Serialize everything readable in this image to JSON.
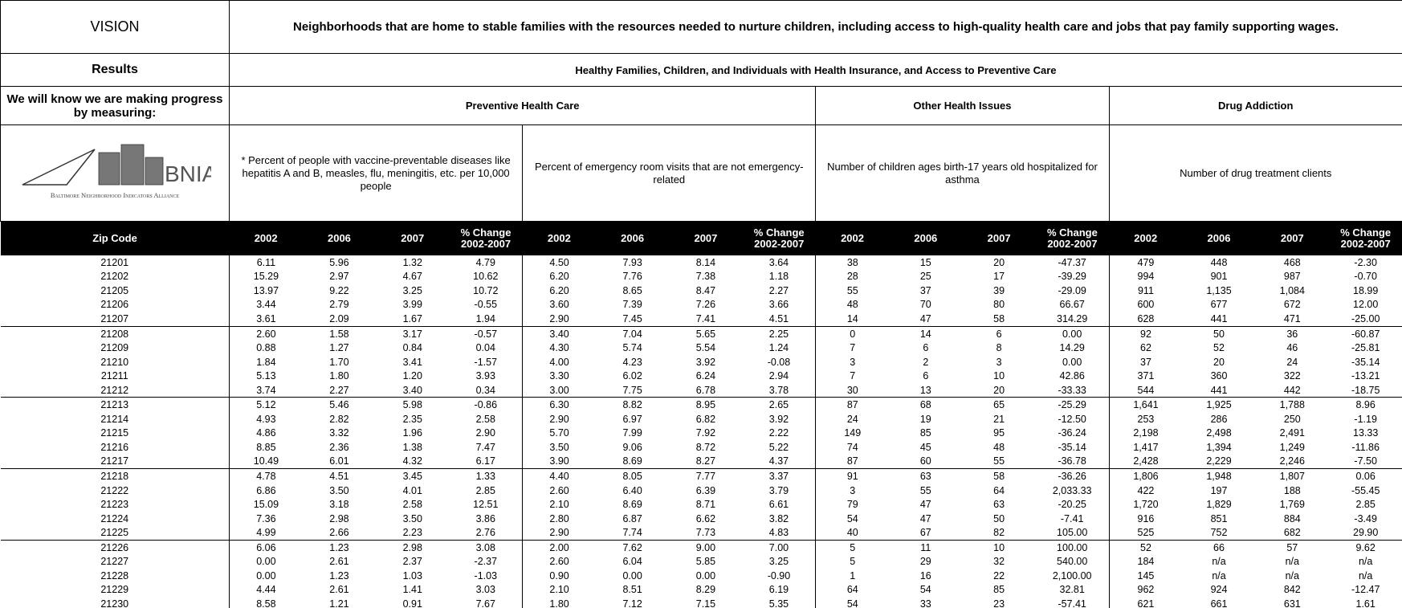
{
  "header": {
    "vision_label": "VISION",
    "vision": "Neighborhoods that are home to stable families with the resources needed to nurture children, including access to high-quality health care and jobs that pay family supporting wages.",
    "results_label": "Results",
    "results": "Healthy Families, Children, and Individuals with Health Insurance, and Access to Preventive Care",
    "measuring_label": "We will know we are making progress by measuring:",
    "groups": [
      "Preventive Health Care",
      "Other Health Issues",
      "Drug  Addiction"
    ],
    "logo": {
      "name": "BNIA",
      "full_name": "Baltimore Neighborhood Indicators Alliance"
    },
    "indicators": [
      "*   Percent of people with vaccine-preventable diseases like hepatitis A and B, measles, flu, meningitis, etc. per 10,000 people",
      "Percent of emergency room visits that are not emergency-related",
      "Number of children ages birth-17 years old  hospitalized for asthma",
      "Number of drug treatment clients"
    ]
  },
  "table": {
    "columns": [
      "Zip Code",
      "2002",
      "2006",
      "2007",
      "% Change 2002-2007",
      "2002",
      "2006",
      "2007",
      "% Change 2002-2007",
      "2002",
      "2006",
      "2007",
      "% Change 2002-2007",
      "2002",
      "2006",
      "2007",
      "% Change 2002-2007"
    ],
    "rows": [
      [
        "21201",
        "6.11",
        "5.96",
        "1.32",
        "4.79",
        "4.50",
        "7.93",
        "8.14",
        "3.64",
        "38",
        "15",
        "20",
        "-47.37",
        "479",
        "448",
        "468",
        "-2.30"
      ],
      [
        "21202",
        "15.29",
        "2.97",
        "4.67",
        "10.62",
        "6.20",
        "7.76",
        "7.38",
        "1.18",
        "28",
        "25",
        "17",
        "-39.29",
        "994",
        "901",
        "987",
        "-0.70"
      ],
      [
        "21205",
        "13.97",
        "9.22",
        "3.25",
        "10.72",
        "6.20",
        "8.65",
        "8.47",
        "2.27",
        "55",
        "37",
        "39",
        "-29.09",
        "911",
        "1,135",
        "1,084",
        "18.99"
      ],
      [
        "21206",
        "3.44",
        "2.79",
        "3.99",
        "-0.55",
        "3.60",
        "7.39",
        "7.26",
        "3.66",
        "48",
        "70",
        "80",
        "66.67",
        "600",
        "677",
        "672",
        "12.00"
      ],
      [
        "21207",
        "3.61",
        "2.09",
        "1.67",
        "1.94",
        "2.90",
        "7.45",
        "7.41",
        "4.51",
        "14",
        "47",
        "58",
        "314.29",
        "628",
        "441",
        "471",
        "-25.00"
      ],
      [
        "21208",
        "2.60",
        "1.58",
        "3.17",
        "-0.57",
        "3.40",
        "7.04",
        "5.65",
        "2.25",
        "0",
        "14",
        "6",
        "0.00",
        "92",
        "50",
        "36",
        "-60.87"
      ],
      [
        "21209",
        "0.88",
        "1.27",
        "0.84",
        "0.04",
        "4.30",
        "5.74",
        "5.54",
        "1.24",
        "7",
        "6",
        "8",
        "14.29",
        "62",
        "52",
        "46",
        "-25.81"
      ],
      [
        "21210",
        "1.84",
        "1.70",
        "3.41",
        "-1.57",
        "4.00",
        "4.23",
        "3.92",
        "-0.08",
        "3",
        "2",
        "3",
        "0.00",
        "37",
        "20",
        "24",
        "-35.14"
      ],
      [
        "21211",
        "5.13",
        "1.80",
        "1.20",
        "3.93",
        "3.30",
        "6.02",
        "6.24",
        "2.94",
        "7",
        "6",
        "10",
        "42.86",
        "371",
        "360",
        "322",
        "-13.21"
      ],
      [
        "21212",
        "3.74",
        "2.27",
        "3.40",
        "0.34",
        "3.00",
        "7.75",
        "6.78",
        "3.78",
        "30",
        "13",
        "20",
        "-33.33",
        "544",
        "441",
        "442",
        "-18.75"
      ],
      [
        "21213",
        "5.12",
        "5.46",
        "5.98",
        "-0.86",
        "6.30",
        "8.82",
        "8.95",
        "2.65",
        "87",
        "68",
        "65",
        "-25.29",
        "1,641",
        "1,925",
        "1,788",
        "8.96"
      ],
      [
        "21214",
        "4.93",
        "2.82",
        "2.35",
        "2.58",
        "2.90",
        "6.97",
        "6.82",
        "3.92",
        "24",
        "19",
        "21",
        "-12.50",
        "253",
        "286",
        "250",
        "-1.19"
      ],
      [
        "21215",
        "4.86",
        "3.32",
        "1.96",
        "2.90",
        "5.70",
        "7.99",
        "7.92",
        "2.22",
        "149",
        "85",
        "95",
        "-36.24",
        "2,198",
        "2,498",
        "2,491",
        "13.33"
      ],
      [
        "21216",
        "8.85",
        "2.36",
        "1.38",
        "7.47",
        "3.50",
        "9.06",
        "8.72",
        "5.22",
        "74",
        "45",
        "48",
        "-35.14",
        "1,417",
        "1,394",
        "1,249",
        "-11.86"
      ],
      [
        "21217",
        "10.49",
        "6.01",
        "4.32",
        "6.17",
        "3.90",
        "8.69",
        "8.27",
        "4.37",
        "87",
        "60",
        "55",
        "-36.78",
        "2,428",
        "2,229",
        "2,246",
        "-7.50"
      ],
      [
        "21218",
        "4.78",
        "4.51",
        "3.45",
        "1.33",
        "4.40",
        "8.05",
        "7.77",
        "3.37",
        "91",
        "63",
        "58",
        "-36.26",
        "1,806",
        "1,948",
        "1,807",
        "0.06"
      ],
      [
        "21222",
        "6.86",
        "3.50",
        "4.01",
        "2.85",
        "2.60",
        "6.40",
        "6.39",
        "3.79",
        "3",
        "55",
        "64",
        "2,033.33",
        "422",
        "197",
        "188",
        "-55.45"
      ],
      [
        "21223",
        "15.09",
        "3.18",
        "2.58",
        "12.51",
        "2.10",
        "8.69",
        "8.71",
        "6.61",
        "79",
        "47",
        "63",
        "-20.25",
        "1,720",
        "1,829",
        "1,769",
        "2.85"
      ],
      [
        "21224",
        "7.36",
        "2.98",
        "3.50",
        "3.86",
        "2.80",
        "6.87",
        "6.62",
        "3.82",
        "54",
        "47",
        "50",
        "-7.41",
        "916",
        "851",
        "884",
        "-3.49"
      ],
      [
        "21225",
        "4.99",
        "2.66",
        "2.23",
        "2.76",
        "2.90",
        "7.74",
        "7.73",
        "4.83",
        "40",
        "67",
        "82",
        "105.00",
        "525",
        "752",
        "682",
        "29.90"
      ],
      [
        "21226",
        "6.06",
        "1.23",
        "2.98",
        "3.08",
        "2.00",
        "7.62",
        "9.00",
        "7.00",
        "5",
        "11",
        "10",
        "100.00",
        "52",
        "66",
        "57",
        "9.62"
      ],
      [
        "21227",
        "0.00",
        "2.61",
        "2.37",
        "-2.37",
        "2.60",
        "6.04",
        "5.85",
        "3.25",
        "5",
        "29",
        "32",
        "540.00",
        "184",
        "n/a",
        "n/a",
        "n/a"
      ],
      [
        "21228",
        "0.00",
        "1.23",
        "1.03",
        "-1.03",
        "0.90",
        "0.00",
        "0.00",
        "-0.90",
        "1",
        "16",
        "22",
        "2,100.00",
        "145",
        "n/a",
        "n/a",
        "n/a"
      ],
      [
        "21229",
        "4.44",
        "2.61",
        "1.41",
        "3.03",
        "2.10",
        "8.51",
        "8.29",
        "6.19",
        "64",
        "54",
        "85",
        "32.81",
        "962",
        "924",
        "842",
        "-12.47"
      ],
      [
        "21230",
        "8.58",
        "1.21",
        "0.91",
        "7.67",
        "1.80",
        "7.12",
        "7.15",
        "5.35",
        "54",
        "33",
        "23",
        "-57.41",
        "621",
        "661",
        "631",
        "1.61"
      ]
    ]
  }
}
